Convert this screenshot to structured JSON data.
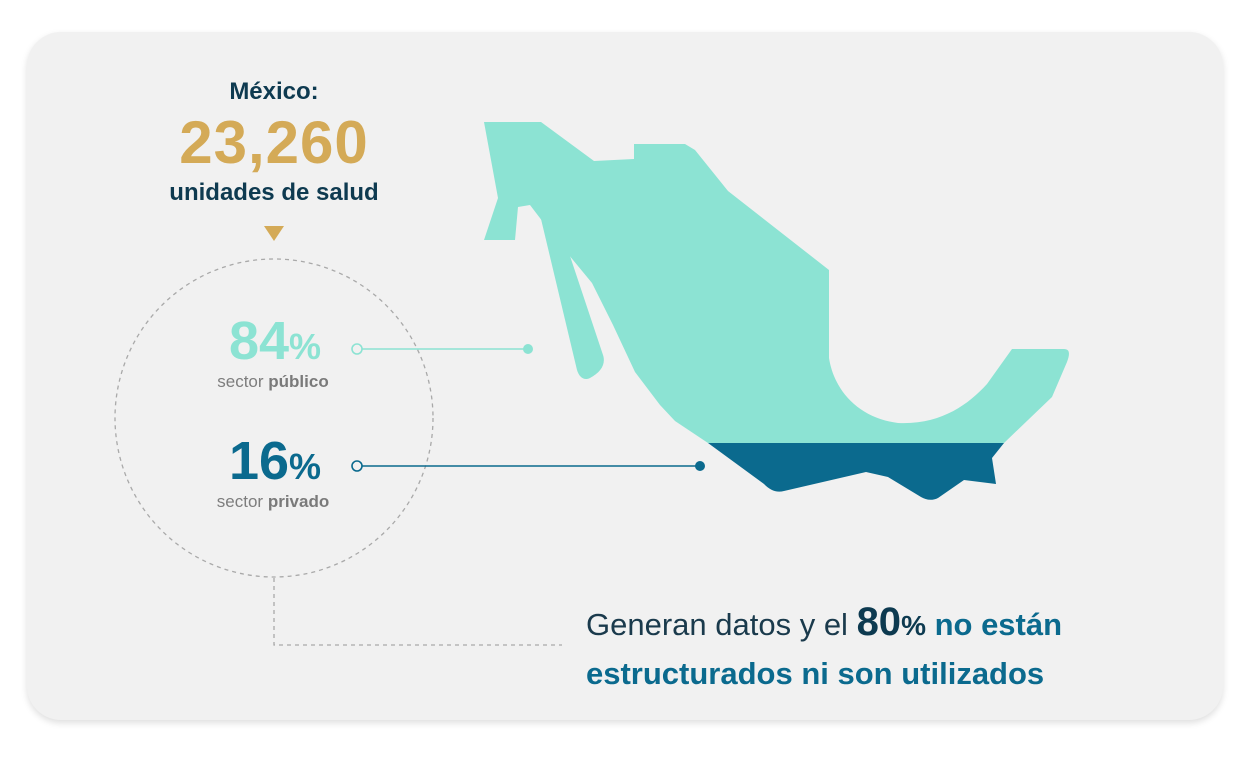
{
  "header": {
    "label": "México:",
    "number": "23,260",
    "subtitle": "unidades de salud"
  },
  "public": {
    "value": "84",
    "sign": "%",
    "prefix": "sector ",
    "emphasis": "público"
  },
  "private": {
    "value": "16",
    "sign": "%",
    "prefix": "sector ",
    "emphasis": "privado"
  },
  "footer": {
    "lead": "Generan datos y el ",
    "value": "80",
    "sign": "%",
    "highlight_1": " no están",
    "highlight_2": "estructurados ni son utilizados"
  },
  "colors": {
    "card": "#f1f1f1",
    "gold": "#d4aa57",
    "navy": "#0e3a50",
    "mint": "#8ce3d3",
    "blue": "#0b6a8e"
  },
  "icons": {
    "pointer": "triangle-down-icon",
    "map": "mexico-map-icon"
  }
}
